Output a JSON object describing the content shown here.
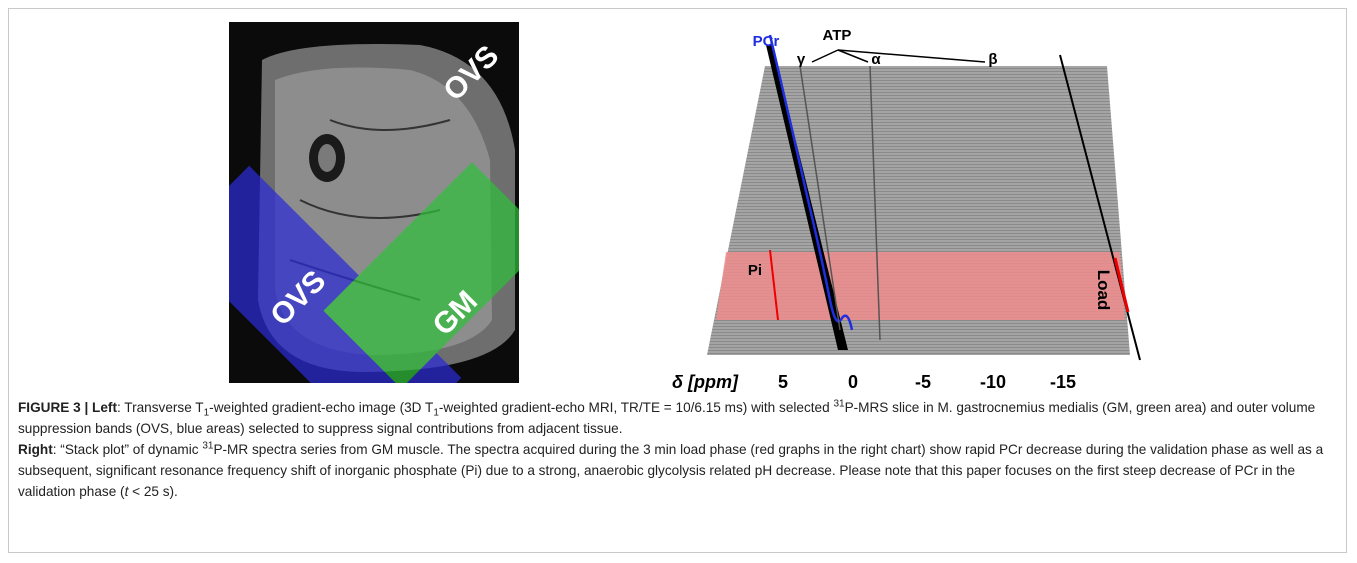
{
  "figure": {
    "left_panel": {
      "labels": [
        "OVS",
        "OVS",
        "GM"
      ]
    },
    "right_panel": {
      "peak_labels": {
        "pcr": "PCr",
        "atp": "ATP",
        "gamma": "γ",
        "alpha": "α",
        "beta": "β",
        "pi": "Pi",
        "load": "Load"
      },
      "axis_label": "δ [ppm]",
      "ticks": [
        5,
        0,
        -5,
        -10,
        -15
      ]
    }
  },
  "caption": {
    "paragraphs": [
      {
        "spans": [
          {
            "style": "bold",
            "text": "FIGURE 3 | Left"
          },
          {
            "style": "normal",
            "text": ": Transverse T"
          },
          {
            "style": "sub",
            "text": "1"
          },
          {
            "style": "normal",
            "text": "-weighted gradient-echo image (3D T"
          },
          {
            "style": "sub",
            "text": "1"
          },
          {
            "style": "normal",
            "text": "-weighted gradient-echo MRI, TR/TE = 10/6.15 ms) with selected "
          },
          {
            "style": "sup",
            "text": "31"
          },
          {
            "style": "normal",
            "text": "P-MRS slice in M. gastrocnemius medialis (GM, green area) and outer volume suppression bands (OVS, blue areas) selected to suppress signal contributions from adjacent tissue."
          }
        ]
      },
      {
        "spans": [
          {
            "style": "bold",
            "text": "Right"
          },
          {
            "style": "normal",
            "text": ": “Stack plot” of dynamic "
          },
          {
            "style": "sup",
            "text": "31"
          },
          {
            "style": "normal",
            "text": "P-MR spectra series from GM muscle. The spectra acquired during the 3 min load phase (red graphs in the right chart) show rapid PCr decrease during the validation phase as well as a subsequent, significant resonance frequency shift of inorganic phosphate (Pi) due to a strong, anaerobic glycolysis related pH decrease. Please note that this paper focuses on the first steep decrease of PCr in the validation phase ("
          },
          {
            "style": "italic",
            "text": "t"
          },
          {
            "style": "normal",
            "text": " < 25 s)."
          }
        ]
      }
    ]
  }
}
